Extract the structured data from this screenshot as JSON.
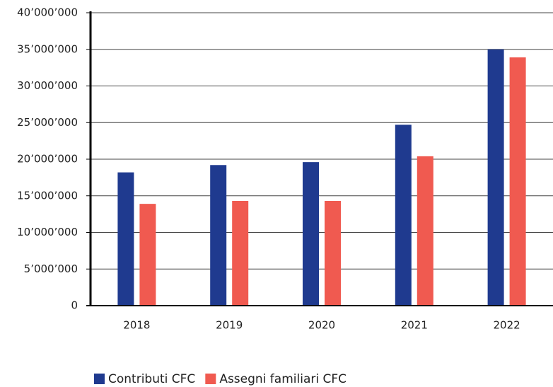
{
  "chart_data": {
    "type": "bar",
    "categories": [
      "2018",
      "2019",
      "2020",
      "2021",
      "2022"
    ],
    "series": [
      {
        "name": "Contributi CFC",
        "color": "#1f3a8f",
        "values": [
          18200000,
          19200000,
          19600000,
          24700000,
          35000000
        ]
      },
      {
        "name": "Assegni familiari CFC",
        "color": "#f05a50",
        "values": [
          13900000,
          14300000,
          14300000,
          20400000,
          33900000
        ]
      }
    ],
    "ylim": [
      0,
      40000000
    ],
    "yticks": [
      0,
      {
        "value": 5000000,
        "label": "5’000’000"
      },
      {
        "value": 10000000,
        "label": "10’000’000"
      },
      {
        "value": 15000000,
        "label": "15’000’000"
      },
      {
        "value": 20000000,
        "label": "20’000’000"
      },
      {
        "value": 25000000,
        "label": "25’000’000"
      },
      {
        "value": 30000000,
        "label": "30’000’000"
      },
      {
        "value": 35000000,
        "label": "35’000’000"
      },
      {
        "value": 40000000,
        "label": "40’000’000"
      }
    ],
    "grid": true,
    "legend": "bottom"
  }
}
